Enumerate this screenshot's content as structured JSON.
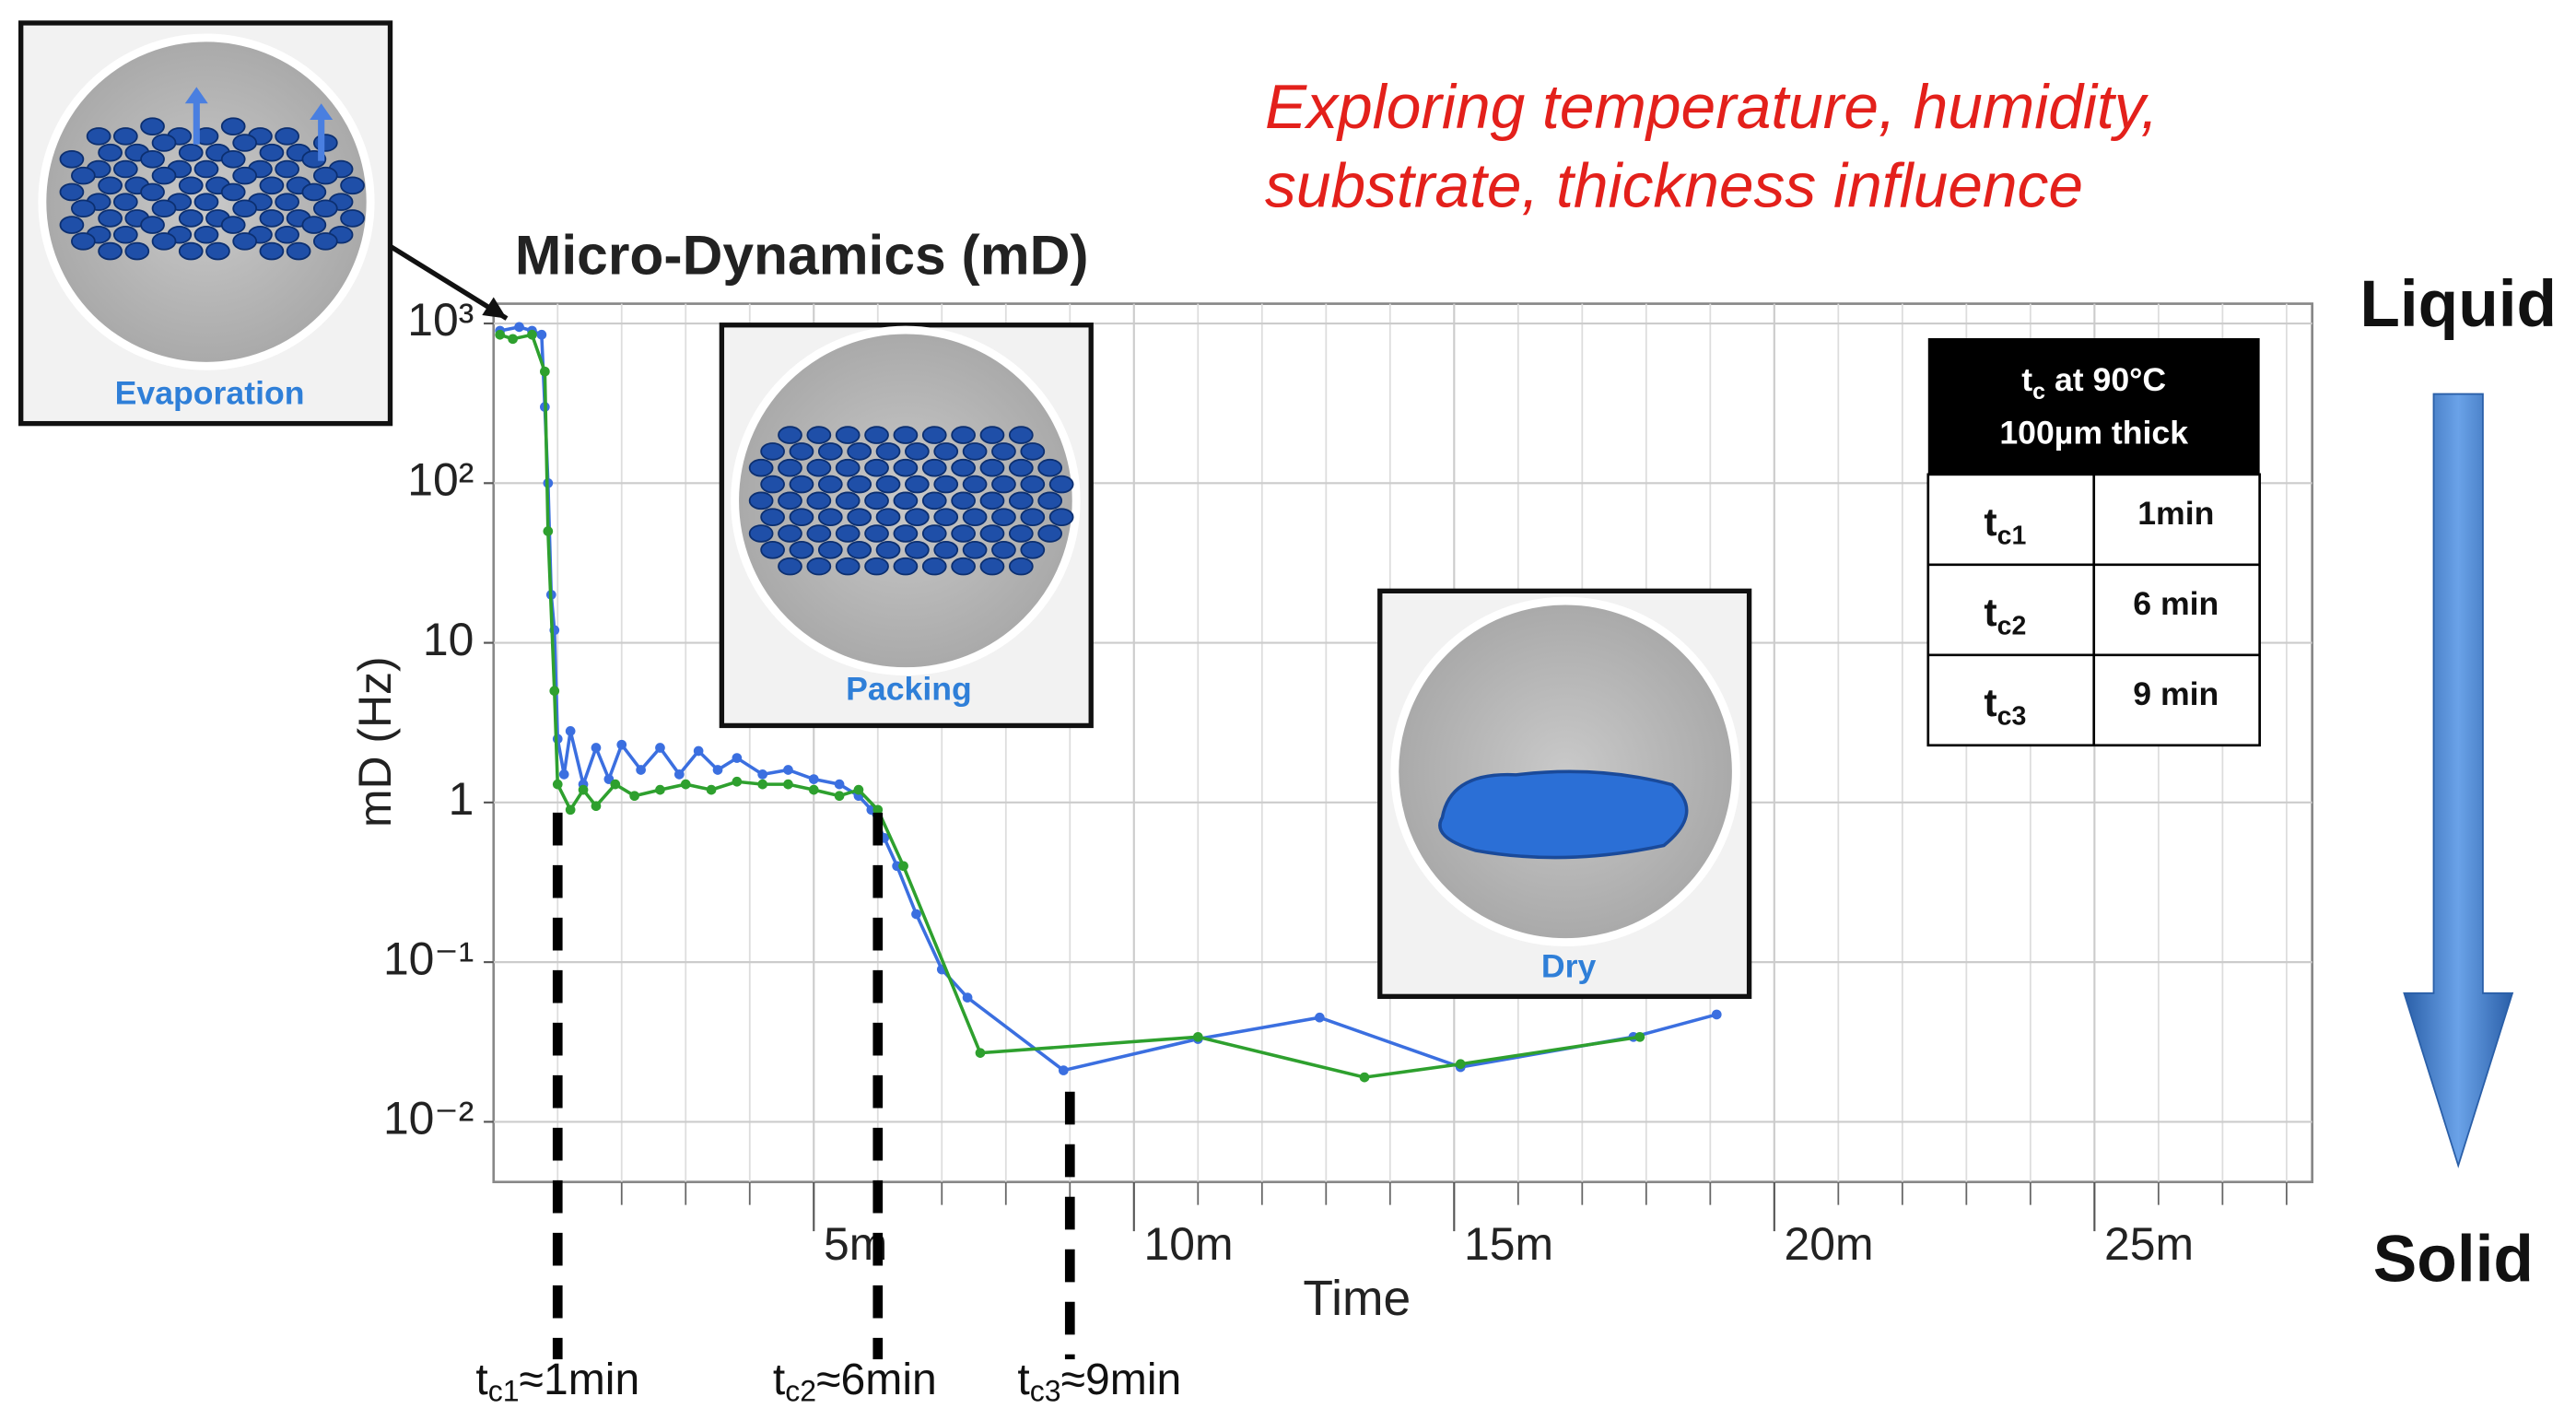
{
  "chart_data": {
    "type": "line",
    "title": "Micro-Dynamics (mD)",
    "xlabel": "Time",
    "ylabel": "mD (Hz)",
    "log_y": true,
    "grid": true,
    "xlim": [
      0,
      28.4
    ],
    "ylim": [
      0.0042,
      1330
    ],
    "xticks": [
      {
        "value": 5,
        "label": "5m"
      },
      {
        "value": 10,
        "label": "10m"
      },
      {
        "value": 15,
        "label": "15m"
      },
      {
        "value": 20,
        "label": "20m"
      },
      {
        "value": 25,
        "label": "25m"
      }
    ],
    "x_minor_ticks": [
      1,
      2,
      3,
      4,
      6,
      7,
      8,
      9,
      11,
      12,
      13,
      14,
      16,
      17,
      18,
      19,
      21,
      22,
      23,
      24,
      26,
      27,
      28
    ],
    "yticks": [
      {
        "value": 0.01,
        "label": "10⁻²"
      },
      {
        "value": 0.1,
        "label": "10⁻¹"
      },
      1,
      10,
      {
        "value": 100,
        "label": "10²"
      },
      {
        "value": 1000,
        "label": "10³"
      }
    ],
    "series": [
      {
        "color": "#3b6fe0",
        "x": [
          0.1,
          0.4,
          0.6,
          0.75,
          0.8,
          0.85,
          0.9,
          0.95,
          1.0,
          1.1,
          1.2,
          1.4,
          1.6,
          1.8,
          2.0,
          2.3,
          2.6,
          2.9,
          3.2,
          3.5,
          3.8,
          4.2,
          4.6,
          5.0,
          5.4,
          5.7,
          5.9,
          6.1,
          6.3,
          6.6,
          7.0,
          7.4,
          8.9,
          11.0,
          12.9,
          15.1,
          17.8,
          19.1
        ],
        "values": [
          900,
          950,
          900,
          850,
          300,
          100,
          20,
          12,
          2.5,
          1.5,
          2.8,
          1.3,
          2.2,
          1.4,
          2.3,
          1.6,
          2.2,
          1.5,
          2.1,
          1.6,
          1.9,
          1.5,
          1.6,
          1.4,
          1.3,
          1.1,
          0.9,
          0.6,
          0.4,
          0.2,
          0.09,
          0.06,
          0.021,
          0.033,
          0.045,
          0.022,
          0.034,
          0.047
        ]
      },
      {
        "color": "#2ea02e",
        "x": [
          0.1,
          0.3,
          0.6,
          0.8,
          0.85,
          0.95,
          1.0,
          1.2,
          1.4,
          1.6,
          1.9,
          2.2,
          2.6,
          3.0,
          3.4,
          3.8,
          4.2,
          4.6,
          5.0,
          5.4,
          5.7,
          6.0,
          6.4,
          7.6,
          11.0,
          13.6,
          15.1,
          17.9
        ],
        "values": [
          850,
          800,
          850,
          500,
          50,
          5,
          1.3,
          0.9,
          1.2,
          0.95,
          1.3,
          1.1,
          1.2,
          1.3,
          1.2,
          1.35,
          1.3,
          1.3,
          1.2,
          1.1,
          1.2,
          0.9,
          0.4,
          0.027,
          0.034,
          0.019,
          0.023,
          0.034
        ]
      }
    ],
    "threshold_markers": [
      {
        "x": 1,
        "t": "t",
        "sub": "c1",
        "text": "≈1min"
      },
      {
        "x": 6,
        "t": "t",
        "sub": "c2",
        "text": "≈6min"
      },
      {
        "x": 9,
        "t": "t",
        "sub": "c3",
        "text": "≈9min"
      }
    ],
    "note_lines": [
      "Exploring temperature, humidity,",
      "substrate, thickness influence"
    ],
    "state_top": "Liquid",
    "state_bottom": "Solid",
    "insets": [
      {
        "caption": "Evaporation"
      },
      {
        "caption": "Packing"
      },
      {
        "caption": "Dry"
      }
    ],
    "table": {
      "header_1": {
        "t": "t",
        "sub": "c",
        "text": " at 90°C"
      },
      "header_2": "100µm thick",
      "rows": [
        {
          "t": "t",
          "sub": "c1",
          "value": "1min"
        },
        {
          "t": "t",
          "sub": "c2",
          "value": "6 min"
        },
        {
          "t": "t",
          "sub": "c3",
          "value": "9 min"
        }
      ]
    }
  }
}
